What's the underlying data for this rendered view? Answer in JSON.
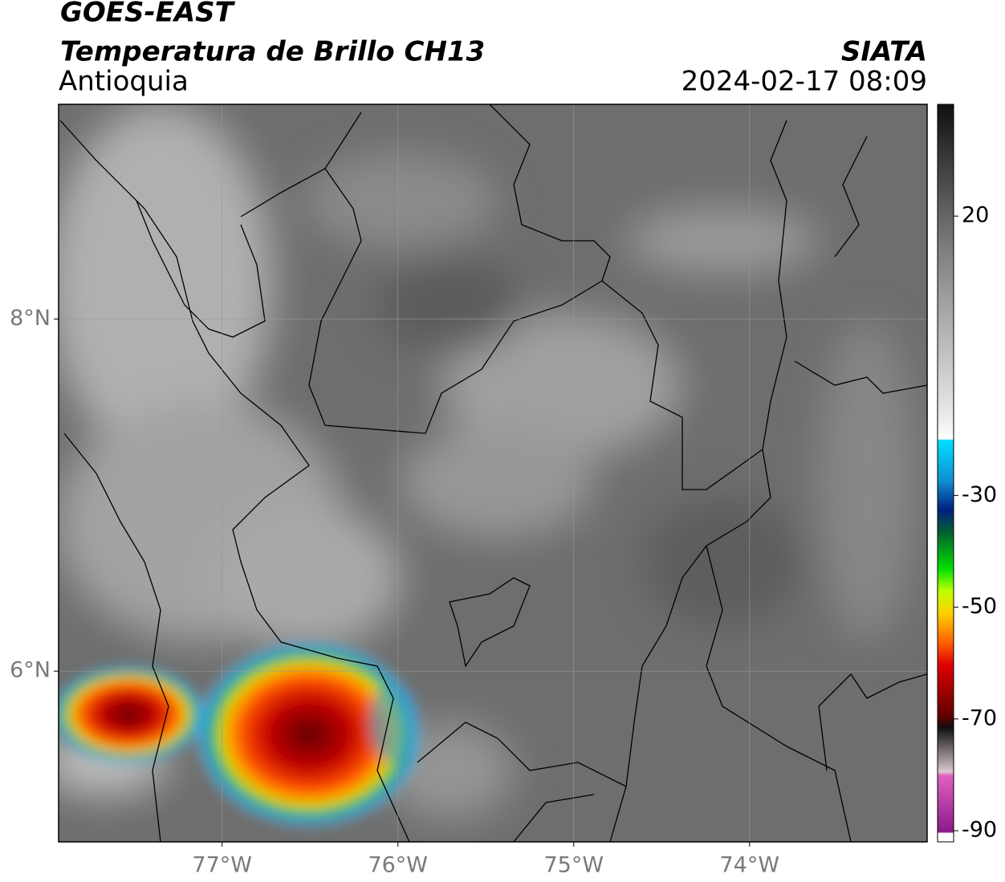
{
  "chart_data": {
    "type": "map",
    "title": "GOES-EAST",
    "subtitle": "Temperatura de Brillo CH13",
    "region": "Antioquia",
    "source": "SIATA",
    "timestamp": "2024-02-17 08:09",
    "xlim": [
      -77.93,
      -72.99
    ],
    "ylim": [
      5.03,
      9.22
    ],
    "xticks": [
      {
        "value": -77,
        "label": "77°W"
      },
      {
        "value": -76,
        "label": "76°W"
      },
      {
        "value": -75,
        "label": "75°W"
      },
      {
        "value": -74,
        "label": "74°W"
      }
    ],
    "yticks": [
      {
        "value": 6,
        "label": "6°N"
      },
      {
        "value": 8,
        "label": "8°N"
      }
    ],
    "grid": true,
    "colorbar_lim": [
      -92,
      40
    ],
    "colorbar_ticks": [
      20,
      -30,
      -50,
      -70,
      -90
    ]
  }
}
